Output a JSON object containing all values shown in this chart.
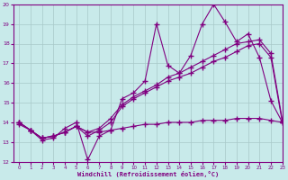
{
  "title": "",
  "xlabel": "Windchill (Refroidissement éolien,°C)",
  "ylabel": "",
  "background_color": "#c8eaea",
  "line_color": "#800080",
  "grid_color": "#a8c8c8",
  "xlim": [
    -0.5,
    23
  ],
  "ylim": [
    12,
    20
  ],
  "xticks": [
    0,
    1,
    2,
    3,
    4,
    5,
    6,
    7,
    8,
    9,
    10,
    11,
    12,
    13,
    14,
    15,
    16,
    17,
    18,
    19,
    20,
    21,
    22,
    23
  ],
  "yticks": [
    12,
    13,
    14,
    15,
    16,
    17,
    18,
    19,
    20
  ],
  "x": [
    0,
    1,
    2,
    3,
    4,
    5,
    6,
    7,
    8,
    9,
    10,
    11,
    12,
    13,
    14,
    15,
    16,
    17,
    18,
    19,
    20,
    21,
    22,
    23
  ],
  "line1": [
    14.0,
    13.6,
    13.1,
    13.2,
    13.7,
    14.0,
    12.1,
    13.3,
    13.6,
    15.2,
    15.5,
    16.1,
    19.0,
    16.9,
    16.5,
    17.4,
    19.0,
    20.0,
    19.1,
    18.1,
    18.5,
    17.3,
    15.1,
    14.0
  ],
  "line2": [
    14.0,
    13.6,
    13.2,
    13.3,
    13.5,
    13.8,
    13.5,
    13.7,
    14.2,
    14.9,
    15.3,
    15.6,
    15.9,
    16.3,
    16.5,
    16.8,
    17.1,
    17.4,
    17.7,
    18.0,
    18.1,
    18.2,
    17.5,
    14.1
  ],
  "line3": [
    14.0,
    13.6,
    13.2,
    13.3,
    13.5,
    13.8,
    13.3,
    13.6,
    14.0,
    14.8,
    15.2,
    15.5,
    15.8,
    16.1,
    16.3,
    16.5,
    16.8,
    17.1,
    17.3,
    17.6,
    17.9,
    18.0,
    17.3,
    14.0
  ],
  "line4": [
    13.9,
    13.6,
    13.2,
    13.3,
    13.5,
    13.8,
    13.5,
    13.5,
    13.6,
    13.7,
    13.8,
    13.9,
    13.9,
    14.0,
    14.0,
    14.0,
    14.1,
    14.1,
    14.1,
    14.2,
    14.2,
    14.2,
    14.1,
    14.0
  ]
}
